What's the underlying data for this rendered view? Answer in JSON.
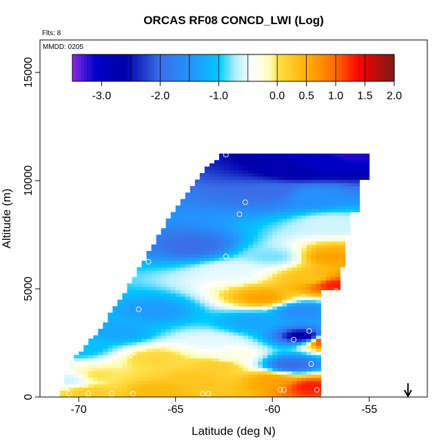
{
  "chart_data": {
    "type": "heatmap",
    "title": "ORCAS RF08 CONCD_LWI (Log)",
    "annotations": {
      "flights": "Flts: 8",
      "date": "MMDD: 0205"
    },
    "xlabel": "Latitude (deg N)",
    "ylabel": "Altitude (m)",
    "xlim": [
      -72,
      -52
    ],
    "ylim": [
      0,
      16500
    ],
    "x_ticks": [
      -70,
      -65,
      -60,
      -55
    ],
    "x_tick_labels": [
      "-70",
      "-65",
      "-60",
      "-55"
    ],
    "y_ticks": [
      0,
      5000,
      10000,
      15000
    ],
    "y_tick_labels": [
      "0",
      "5000",
      "10000",
      "15000"
    ],
    "colorbar": {
      "range": [
        -3.5,
        2.0
      ],
      "ticks": [
        -3.0,
        -2.0,
        -1.0,
        0.0,
        0.5,
        1.0,
        1.5,
        2.0
      ],
      "tick_labels": [
        "-3.0",
        "-2.0",
        "-1.0",
        "0.0",
        "0.5",
        "1.0",
        "1.5",
        "2.0"
      ],
      "divisions": [
        -3.5,
        -3.0,
        -2.5,
        -2.0,
        -1.5,
        -1.0,
        -0.5,
        0.0,
        0.5,
        1.0,
        1.5,
        2.0
      ],
      "stops": [
        {
          "v": -3.5,
          "color": "#8a2be2"
        },
        {
          "v": -3.1,
          "color": "#0000c8"
        },
        {
          "v": -2.6,
          "color": "#0000aa"
        },
        {
          "v": -2.0,
          "color": "#3a6ee8"
        },
        {
          "v": -1.4,
          "color": "#1e9bff"
        },
        {
          "v": -1.0,
          "color": "#00c8ff"
        },
        {
          "v": -0.7,
          "color": "#b8f0ff"
        },
        {
          "v": -0.4,
          "color": "#ffffff"
        },
        {
          "v": -0.1,
          "color": "#fffcb0"
        },
        {
          "v": 0.0,
          "color": "#ffe14a"
        },
        {
          "v": 0.5,
          "color": "#ffb000"
        },
        {
          "v": 1.0,
          "color": "#ff6a00"
        },
        {
          "v": 1.4,
          "color": "#ff0000"
        },
        {
          "v": 2.0,
          "color": "#7a1a1a"
        }
      ]
    },
    "arrow_latitude": -53,
    "coverage_edge": [
      {
        "alt": 0,
        "lat": -71
      },
      {
        "alt": 1500,
        "lat": -70.5
      },
      {
        "alt": 3000,
        "lat": -69
      },
      {
        "alt": 5000,
        "lat": -67.5
      },
      {
        "alt": 6500,
        "lat": -66.5
      },
      {
        "alt": 8500,
        "lat": -65.2
      },
      {
        "alt": 10500,
        "lat": -63.5
      },
      {
        "alt": 11300,
        "lat": -62.5
      }
    ],
    "field_anchors": [
      {
        "lat": -64,
        "alt": 7000,
        "v": -2.0
      },
      {
        "lat": -60,
        "alt": 9500,
        "v": -2.0
      },
      {
        "lat": -57.5,
        "alt": 10800,
        "v": -3.0
      },
      {
        "lat": -56,
        "alt": 11200,
        "v": -3.2
      },
      {
        "lat": -59,
        "alt": 10500,
        "v": -2.7
      },
      {
        "lat": -58,
        "alt": 9300,
        "v": -1.5
      },
      {
        "lat": -57,
        "alt": 8000,
        "v": -0.6
      },
      {
        "lat": -57,
        "alt": 6500,
        "v": 0.6
      },
      {
        "lat": -56.8,
        "alt": 5200,
        "v": 1.3
      },
      {
        "lat": -58,
        "alt": 5500,
        "v": 0.3
      },
      {
        "lat": -60,
        "alt": 6500,
        "v": -0.8
      },
      {
        "lat": -62,
        "alt": 5800,
        "v": -0.5
      },
      {
        "lat": -60.5,
        "alt": 4600,
        "v": 0.6
      },
      {
        "lat": -58.5,
        "alt": 4000,
        "v": -1.6
      },
      {
        "lat": -58.3,
        "alt": 2800,
        "v": -2.9
      },
      {
        "lat": -57.3,
        "alt": 2600,
        "v": 1.4
      },
      {
        "lat": -61,
        "alt": 3500,
        "v": -1.3
      },
      {
        "lat": -63,
        "alt": 2500,
        "v": -0.5
      },
      {
        "lat": -62,
        "alt": 2000,
        "v": -0.3
      },
      {
        "lat": -66,
        "alt": 4000,
        "v": -1.4
      },
      {
        "lat": -68,
        "alt": 3000,
        "v": -1.3
      },
      {
        "lat": -70,
        "alt": 2300,
        "v": -1.1
      },
      {
        "lat": -66,
        "alt": 1800,
        "v": 0.1
      },
      {
        "lat": -63,
        "alt": 1400,
        "v": 0.2
      },
      {
        "lat": -59,
        "alt": 1500,
        "v": -2.0
      },
      {
        "lat": -60,
        "alt": 800,
        "v": 0.6
      },
      {
        "lat": -58,
        "alt": 500,
        "v": 1.3
      },
      {
        "lat": -64,
        "alt": 800,
        "v": 0.3
      },
      {
        "lat": -69,
        "alt": 1000,
        "v": 0.0
      },
      {
        "lat": -70.5,
        "alt": 800,
        "v": -0.6
      },
      {
        "lat": -66,
        "alt": 300,
        "v": 0.4
      },
      {
        "lat": -69.5,
        "alt": 200,
        "v": 0.2
      }
    ],
    "observations": [
      {
        "lat": -62.4,
        "alt": 11200
      },
      {
        "lat": -61.4,
        "alt": 9000
      },
      {
        "lat": -61.7,
        "alt": 8450
      },
      {
        "lat": -66.4,
        "alt": 6250
      },
      {
        "lat": -62.4,
        "alt": 6500
      },
      {
        "lat": -56.7,
        "alt": 4900
      },
      {
        "lat": -58.4,
        "alt": 4600
      },
      {
        "lat": -62.8,
        "alt": 4350
      },
      {
        "lat": -60.4,
        "alt": 4100
      },
      {
        "lat": -66.9,
        "alt": 4050
      },
      {
        "lat": -58.1,
        "alt": 3050
      },
      {
        "lat": -58.9,
        "alt": 2650
      },
      {
        "lat": -63.0,
        "alt": 2200
      },
      {
        "lat": -57.3,
        "alt": 1750
      },
      {
        "lat": -58.0,
        "alt": 1530
      },
      {
        "lat": -67.3,
        "alt": 1950
      },
      {
        "lat": -67.9,
        "alt": 1520
      },
      {
        "lat": -68.9,
        "alt": 1500
      },
      {
        "lat": -70.0,
        "alt": 1500
      },
      {
        "lat": -70.6,
        "alt": 1450
      },
      {
        "lat": -71.1,
        "alt": 150
      },
      {
        "lat": -70.5,
        "alt": 150
      },
      {
        "lat": -69.5,
        "alt": 150
      },
      {
        "lat": -68.3,
        "alt": 150
      },
      {
        "lat": -67.2,
        "alt": 150
      },
      {
        "lat": -63.6,
        "alt": 150
      },
      {
        "lat": -63.3,
        "alt": 150
      },
      {
        "lat": -59.6,
        "alt": 330
      },
      {
        "lat": -59.4,
        "alt": 330
      },
      {
        "lat": -57.7,
        "alt": 330
      }
    ]
  }
}
